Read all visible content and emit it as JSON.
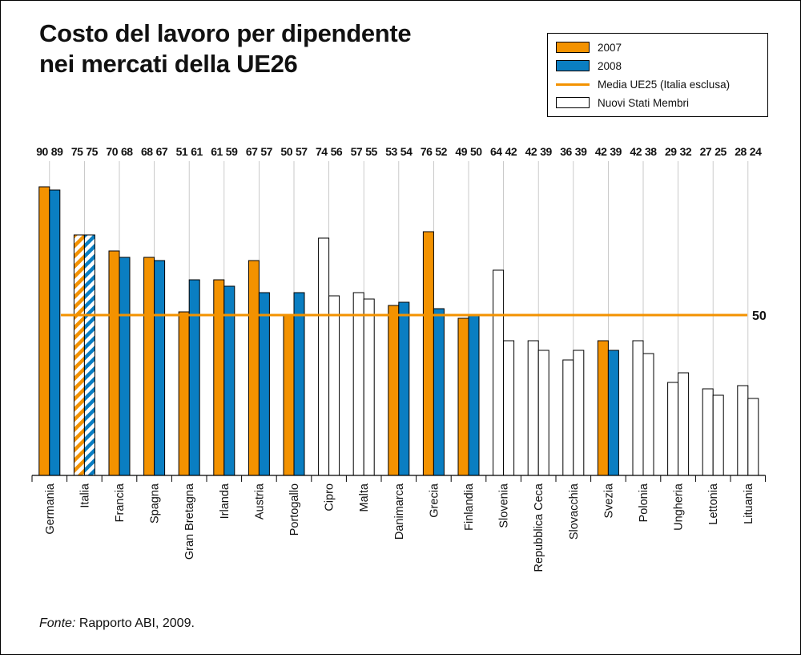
{
  "title_line1": "Costo del lavoro per dipendente",
  "title_line2": "nei mercati della UE26",
  "source_label": "Fonte:",
  "source_text": "Rapporto ABI, 2009.",
  "legend": {
    "y2007": "2007",
    "y2008": "2008",
    "average": "Media UE25 (Italia esclusa)",
    "new_states": "Nuovi Stati Membri"
  },
  "colors": {
    "y2007": "#f39200",
    "y2008": "#0a7ec2",
    "new_states": "#ffffff",
    "average_line": "#f39200"
  },
  "chart_data": {
    "type": "bar",
    "title": "Costo del lavoro per dipendente nei mercati della UE26",
    "categories": [
      "Germania",
      "Italia",
      "Francia",
      "Spagna",
      "Gran Bretagna",
      "Irlanda",
      "Austria",
      "Portogallo",
      "Cipro",
      "Malta",
      "Danimarca",
      "Grecia",
      "Finlandia",
      "Slovenia",
      "Repubblica Ceca",
      "Slovacchia",
      "Svezia",
      "Polonia",
      "Ungheria",
      "Lettonia",
      "Lituania"
    ],
    "series": [
      {
        "name": "2007",
        "values": [
          90,
          75,
          70,
          68,
          51,
          61,
          67,
          50,
          74,
          57,
          53,
          76,
          49,
          64,
          42,
          36,
          42,
          42,
          29,
          27,
          28
        ]
      },
      {
        "name": "2008",
        "values": [
          89,
          75,
          68,
          67,
          61,
          59,
          57,
          57,
          56,
          55,
          54,
          52,
          50,
          42,
          39,
          39,
          39,
          38,
          32,
          25,
          24
        ]
      }
    ],
    "styles": [
      "member",
      "italia",
      "member",
      "member",
      "member",
      "member",
      "member",
      "member",
      "new",
      "new",
      "member",
      "member",
      "member",
      "new",
      "new",
      "new",
      "member",
      "new",
      "new",
      "new",
      "new"
    ],
    "reference_line": {
      "value": 50,
      "label": "50",
      "name": "Media UE25 (Italia esclusa)"
    },
    "ylim": [
      0,
      100
    ],
    "grid": true
  }
}
